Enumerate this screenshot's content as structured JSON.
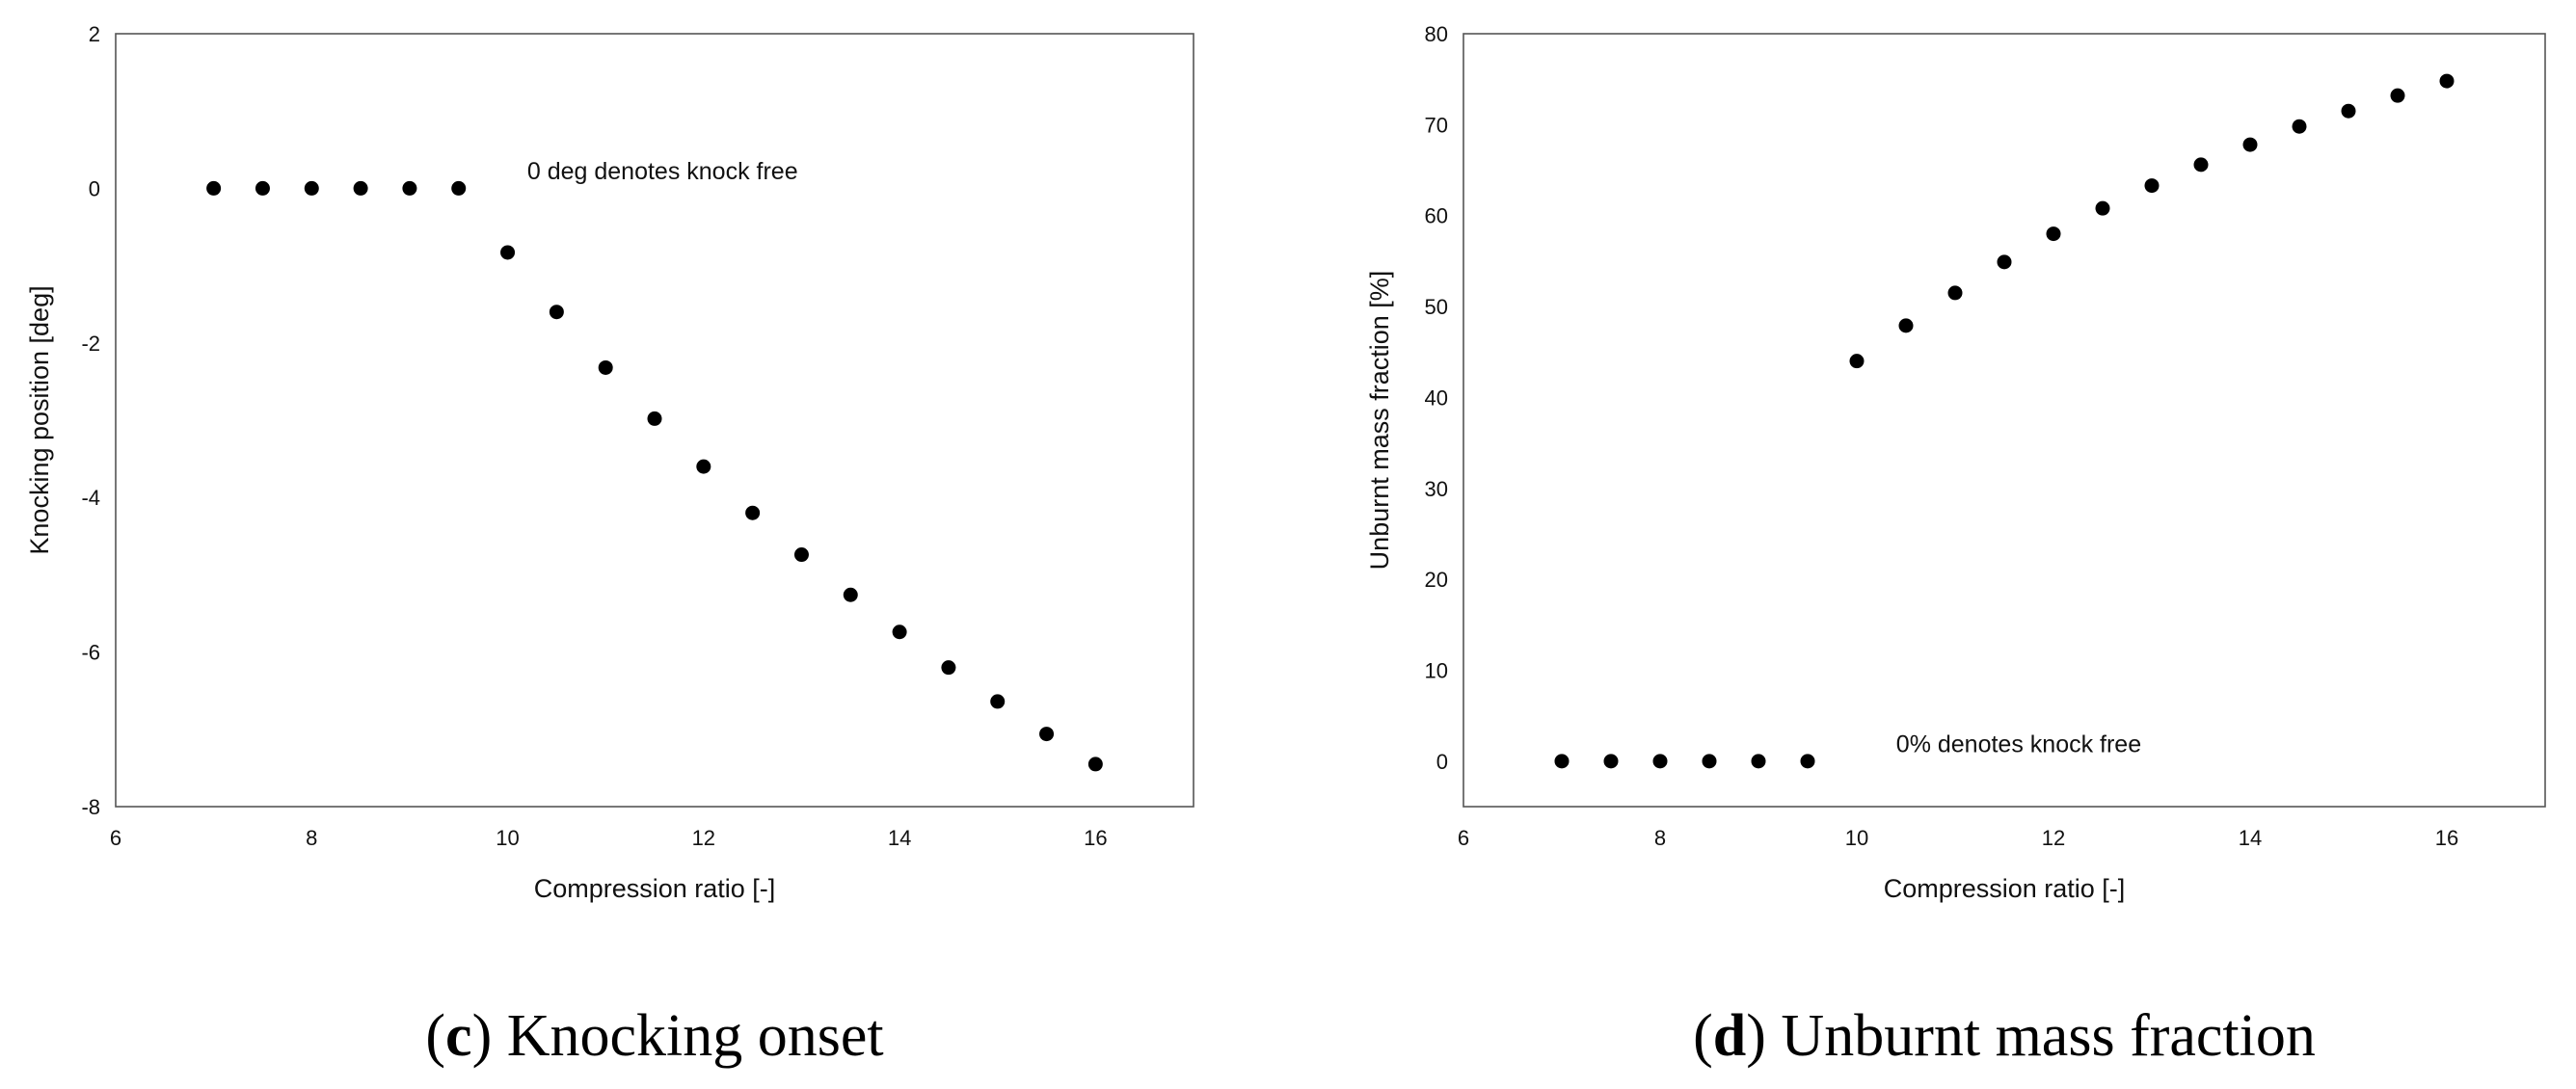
{
  "chart_data": [
    {
      "type": "scatter",
      "caption_letter": "c",
      "caption_text": " Knocking onset",
      "xlabel": "Compression ratio [-]",
      "ylabel": "Knocking position [deg]",
      "xlim": [
        6,
        17
      ],
      "ylim": [
        -8,
        2
      ],
      "xticks": [
        6,
        8,
        10,
        12,
        14,
        16
      ],
      "yticks": [
        2,
        0,
        -2,
        -4,
        -6,
        -8
      ],
      "annotation": "0 deg denotes knock free",
      "annotation_at": [
        10.2,
        0.12
      ],
      "grid": false,
      "marker_color": "#000000",
      "x": [
        7,
        7.5,
        8,
        8.5,
        9,
        9.5,
        10,
        10.5,
        11,
        11.5,
        12,
        12.5,
        13,
        13.5,
        14,
        14.5,
        15,
        15.5,
        16
      ],
      "y": [
        0,
        0,
        0,
        0,
        0,
        0,
        -0.83,
        -1.6,
        -2.32,
        -2.98,
        -3.6,
        -4.2,
        -4.74,
        -5.26,
        -5.74,
        -6.2,
        -6.64,
        -7.06,
        -7.45
      ]
    },
    {
      "type": "scatter",
      "caption_letter": "d",
      "caption_text": " Unburnt mass fraction",
      "xlabel": "Compression ratio [-]",
      "ylabel": "Unburnt mass fraction [%]",
      "xlim": [
        6,
        17
      ],
      "ylim": [
        -5,
        80
      ],
      "xticks": [
        6,
        8,
        10,
        12,
        14,
        16
      ],
      "yticks": [
        80,
        70,
        60,
        50,
        40,
        30,
        20,
        10,
        0
      ],
      "annotation": "0% denotes knock free",
      "annotation_at": [
        10.4,
        1.0
      ],
      "grid": false,
      "marker_color": "#000000",
      "x": [
        7,
        7.5,
        8,
        8.5,
        9,
        9.5,
        10,
        10.5,
        11,
        11.5,
        12,
        12.5,
        13,
        13.5,
        14,
        14.5,
        15,
        15.5,
        16
      ],
      "y": [
        0,
        0,
        0,
        0,
        0,
        0,
        44.0,
        47.9,
        51.5,
        54.9,
        58.0,
        60.8,
        63.3,
        65.6,
        67.8,
        69.8,
        71.5,
        73.2,
        74.8
      ]
    }
  ]
}
